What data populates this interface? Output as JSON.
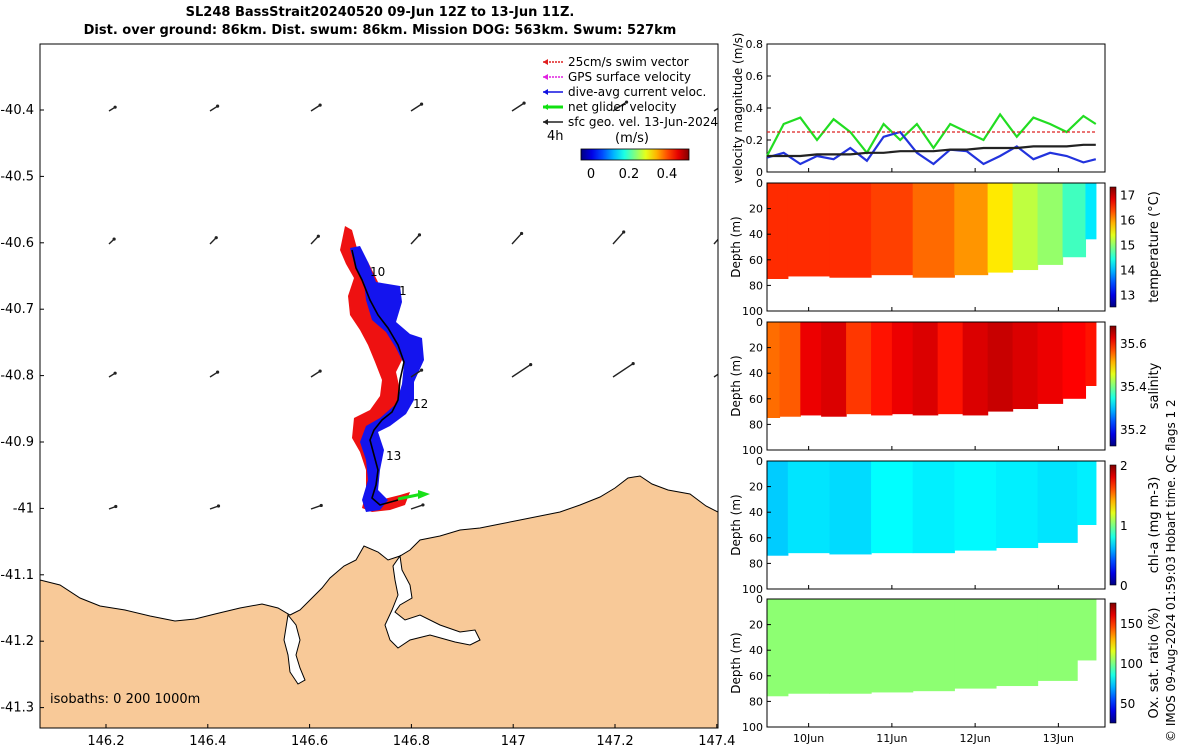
{
  "header": {
    "line1": "SL248 BassStrait20240520 09-Jun 12Z to 13-Jun 11Z.",
    "line2": "Dist. over ground: 86km. Dist. swum: 86km. Mission DOG: 563km. Swum: 527km"
  },
  "map": {
    "lat_ticks": [
      "-40.4",
      "-40.5",
      "-40.6",
      "-40.7",
      "-40.8",
      "-40.9",
      "-41",
      "-41.1",
      "-41.2",
      "-41.3"
    ],
    "lon_ticks": [
      "146.2",
      "146.4",
      "146.6",
      "146.8",
      "147",
      "147.2",
      "147.4"
    ],
    "legend": [
      {
        "label": "25cm/s swim vector",
        "color": "#e02020"
      },
      {
        "label": "GPS surface velocity",
        "color": "#e020e0"
      },
      {
        "label": "dive-avg current veloc.",
        "color": "#1010e0"
      },
      {
        "label": "net glider velocity",
        "color": "#10e010"
      },
      {
        "label": "sfc geo. vel. 13-Jun-2024",
        "color": "#202020"
      }
    ],
    "legend_interval": "4h",
    "colorbar_unit": "(m/s)",
    "colorbar_ticks": [
      "0",
      "0.2",
      "0.4"
    ],
    "day_labels": [
      "10",
      "1",
      "12",
      "13"
    ],
    "isobaths": "isobaths: 0   200  1000m",
    "land_color": "#f8c998"
  },
  "chart_data": [
    {
      "type": "line",
      "title": "velocity",
      "ylabel": "velocity magnitude (m/s)",
      "ylim": [
        0,
        0.8
      ],
      "yticks": [
        "0",
        "0.2",
        "0.4",
        "0.6",
        "0.8"
      ],
      "x_days": [
        9.5,
        9.7,
        9.9,
        10.1,
        10.3,
        10.5,
        10.7,
        10.9,
        11.1,
        11.3,
        11.5,
        11.7,
        11.9,
        12.1,
        12.3,
        12.5,
        12.7,
        12.9,
        13.1,
        13.3,
        13.45
      ],
      "series": [
        {
          "name": "net glider velocity",
          "color": "#22dd22",
          "values": [
            0.1,
            0.3,
            0.34,
            0.2,
            0.33,
            0.25,
            0.12,
            0.3,
            0.2,
            0.3,
            0.15,
            0.3,
            0.25,
            0.2,
            0.36,
            0.22,
            0.34,
            0.3,
            0.25,
            0.35,
            0.3
          ]
        },
        {
          "name": "dive-avg current",
          "color": "#2233dd",
          "values": [
            0.09,
            0.12,
            0.05,
            0.1,
            0.08,
            0.15,
            0.07,
            0.22,
            0.25,
            0.12,
            0.05,
            0.14,
            0.13,
            0.05,
            0.1,
            0.16,
            0.08,
            0.12,
            0.1,
            0.06,
            0.08
          ]
        },
        {
          "name": "sfc geo vel",
          "color": "#222222",
          "values": [
            0.1,
            0.1,
            0.1,
            0.11,
            0.11,
            0.11,
            0.12,
            0.12,
            0.13,
            0.13,
            0.13,
            0.14,
            0.14,
            0.15,
            0.15,
            0.15,
            0.16,
            0.16,
            0.16,
            0.17,
            0.17
          ]
        },
        {
          "name": "25cm/s swim",
          "color": "#dd2222",
          "values": [
            0.25,
            0.25,
            0.25,
            0.25,
            0.25,
            0.25,
            0.25,
            0.25,
            0.25,
            0.25,
            0.25,
            0.25,
            0.25,
            0.25,
            0.25,
            0.25,
            0.25,
            0.25,
            0.25,
            0.25,
            0.25
          ]
        }
      ]
    },
    {
      "type": "heatmap",
      "title": "temperature",
      "ylabel": "Depth (m)",
      "cbar_label": "temperature (°C)",
      "cbar_ticks": [
        "13",
        "14",
        "15",
        "16",
        "17"
      ],
      "clim": [
        12.5,
        17.3
      ],
      "depth_ticks": [
        "0",
        "20",
        "40",
        "60",
        "80",
        "100"
      ],
      "x_days": [
        9.5,
        10.0,
        10.5,
        11.0,
        11.5,
        12.0,
        12.3,
        12.6,
        12.9,
        13.2,
        13.45
      ],
      "column_values": [
        16.5,
        16.5,
        16.5,
        16.4,
        16.2,
        16.0,
        15.6,
        15.2,
        15.0,
        14.6,
        14.2
      ],
      "bottom_depth": [
        75,
        73,
        74,
        72,
        74,
        72,
        70,
        68,
        64,
        58,
        44
      ]
    },
    {
      "type": "heatmap",
      "title": "salinity",
      "ylabel": "Depth (m)",
      "cbar_label": "salinity",
      "cbar_ticks": [
        "35.2",
        "35.4",
        "35.6"
      ],
      "clim": [
        35.12,
        35.68
      ],
      "depth_ticks": [
        "0",
        "20",
        "40",
        "60",
        "80",
        "100"
      ],
      "x_days": [
        9.5,
        9.8,
        10.0,
        10.3,
        10.6,
        10.9,
        11.1,
        11.4,
        11.7,
        12.0,
        12.3,
        12.6,
        12.9,
        13.2,
        13.45
      ],
      "column_values": [
        35.55,
        35.56,
        35.62,
        35.63,
        35.58,
        35.6,
        35.62,
        35.63,
        35.6,
        35.63,
        35.64,
        35.63,
        35.62,
        35.61,
        35.6
      ],
      "bottom_depth": [
        75,
        74,
        73,
        74,
        72,
        73,
        72,
        73,
        72,
        73,
        70,
        68,
        64,
        60,
        50
      ]
    },
    {
      "type": "heatmap",
      "title": "chl-a",
      "ylabel": "Depth (m)",
      "cbar_label": "chl-a (mg m-3)",
      "cbar_ticks": [
        "0",
        "1",
        "2"
      ],
      "clim": [
        0,
        2
      ],
      "depth_ticks": [
        "0",
        "20",
        "40",
        "60",
        "80",
        "100"
      ],
      "x_days": [
        9.5,
        10.0,
        10.5,
        11.0,
        11.5,
        12.0,
        12.5,
        13.0,
        13.45
      ],
      "column_values": [
        0.65,
        0.7,
        0.68,
        0.75,
        0.72,
        0.74,
        0.72,
        0.7,
        0.72
      ],
      "bottom_depth": [
        74,
        72,
        73,
        72,
        72,
        70,
        68,
        64,
        50
      ]
    },
    {
      "type": "heatmap",
      "title": "Ox. sat. ratio",
      "ylabel": "Depth (m)",
      "cbar_label": "Ox. sat. ratio (%)",
      "cbar_ticks": [
        "50",
        "100",
        "150"
      ],
      "clim": [
        25,
        175
      ],
      "depth_ticks": [
        "0",
        "20",
        "40",
        "60",
        "80",
        "100"
      ],
      "x_days": [
        9.5,
        10.0,
        10.5,
        11.0,
        11.5,
        12.0,
        12.5,
        13.0,
        13.45
      ],
      "column_values": [
        102,
        102,
        102,
        102,
        102,
        102,
        102,
        102,
        102
      ],
      "bottom_depth": [
        76,
        74,
        74,
        73,
        72,
        70,
        68,
        64,
        48
      ]
    }
  ],
  "time_axis": [
    "10Jun",
    "11Jun",
    "12Jun",
    "13Jun"
  ],
  "credit": "© IMOS 09-Aug-2024 01:59:03 Hobart time. QC flags 1  2"
}
